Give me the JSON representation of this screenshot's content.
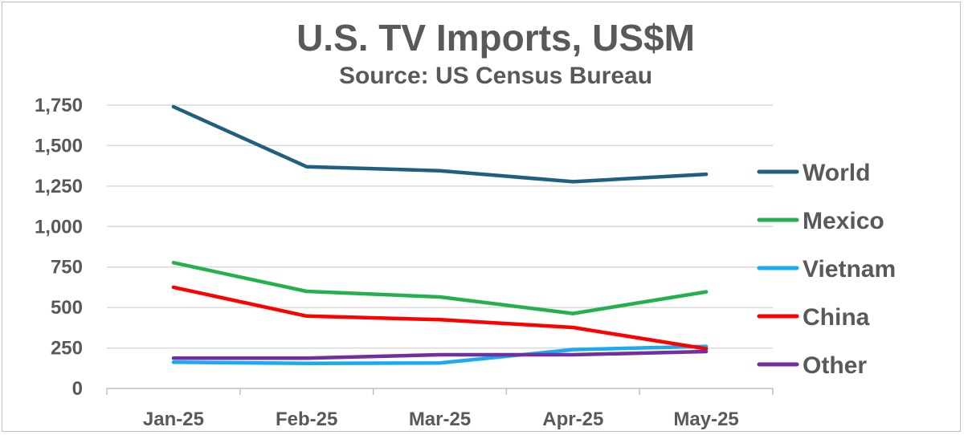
{
  "chart_data": {
    "type": "line",
    "title": "U.S. TV Imports, US$M",
    "subtitle": "Source: US Census Bureau",
    "xlabel": "",
    "ylabel": "",
    "categories": [
      "Jan-25",
      "Feb-25",
      "Mar-25",
      "Apr-25",
      "May-25"
    ],
    "ylim": [
      0,
      1750
    ],
    "yticks": [
      0,
      250,
      500,
      750,
      1000,
      1250,
      1500,
      1750
    ],
    "ytick_labels": [
      "0",
      "250",
      "500",
      "750",
      "1,000",
      "1,250",
      "1,500",
      "1,750"
    ],
    "grid": true,
    "legend_position": "right",
    "series": [
      {
        "name": "World",
        "color": "#1f5f7f",
        "values": [
          1740,
          1370,
          1345,
          1277,
          1323
        ]
      },
      {
        "name": "Mexico",
        "color": "#22b14c",
        "values": [
          777,
          600,
          565,
          463,
          597
        ]
      },
      {
        "name": "Vietnam",
        "color": "#19aaf0",
        "values": [
          162,
          155,
          157,
          240,
          260
        ]
      },
      {
        "name": "China",
        "color": "#ff0000",
        "values": [
          625,
          447,
          425,
          377,
          245
        ]
      },
      {
        "name": "Other",
        "color": "#7030a0",
        "values": [
          187,
          187,
          208,
          208,
          228
        ]
      }
    ]
  }
}
